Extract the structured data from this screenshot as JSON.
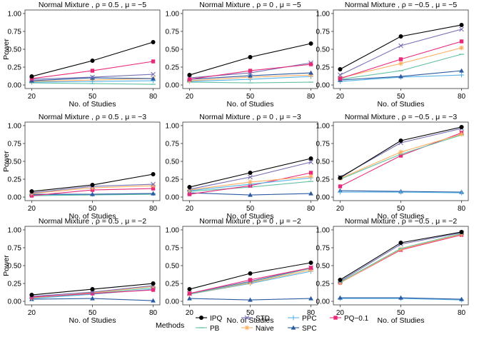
{
  "legend": {
    "title": "Methods",
    "entries": [
      {
        "key": "IPQ",
        "label": "IPQ",
        "color": "#000000",
        "marker": "circle"
      },
      {
        "key": "PB",
        "label": "PB",
        "color": "#66c2a5",
        "marker": "minus"
      },
      {
        "key": "STD",
        "label": "STD",
        "color": "#7570b3",
        "marker": "x"
      },
      {
        "key": "Naive",
        "label": "Naive",
        "color": "#fdae61",
        "marker": "asterisk"
      },
      {
        "key": "PPC",
        "label": "PPC",
        "color": "#56b4e9",
        "marker": "plus"
      },
      {
        "key": "SPC",
        "label": "SPC",
        "color": "#2c5aa0",
        "marker": "triangle"
      },
      {
        "key": "PQ",
        "label": "PQ−0.1",
        "color": "#e7297a",
        "marker": "square"
      }
    ]
  },
  "chart_data": [
    {
      "type": "line",
      "title": "Normal Mixture , ρ = 0.5 , μ = −5",
      "xlabel": "No. of Studies",
      "ylabel": "Power",
      "x": [
        20,
        50,
        80
      ],
      "ylim": [
        0,
        1
      ],
      "yticks": [
        "0.00",
        "0.25",
        "0.50",
        "0.75",
        "1.00"
      ],
      "xticks": [
        "20",
        "50",
        "80"
      ],
      "series": [
        {
          "name": "PB",
          "values": [
            0.03,
            0.02,
            0.01
          ]
        },
        {
          "name": "Naive",
          "values": [
            0.05,
            0.07,
            0.09
          ]
        },
        {
          "name": "PPC",
          "values": [
            0.04,
            0.05,
            0.06
          ]
        },
        {
          "name": "SPC",
          "values": [
            0.06,
            0.1,
            0.09
          ]
        },
        {
          "name": "STD",
          "values": [
            0.08,
            0.11,
            0.15
          ]
        },
        {
          "name": "PQ",
          "values": [
            0.09,
            0.2,
            0.33
          ]
        },
        {
          "name": "IPQ",
          "values": [
            0.12,
            0.34,
            0.6
          ]
        }
      ]
    },
    {
      "type": "line",
      "title": "Normal Mixture , ρ = 0 , μ = −5",
      "xlabel": "No. of Studies",
      "ylabel": "",
      "x": [
        20,
        50,
        80
      ],
      "ylim": [
        0,
        1
      ],
      "yticks": [
        "0.00",
        "0.25",
        "0.50",
        "0.75",
        "1.00"
      ],
      "xticks": [
        "20",
        "50",
        "80"
      ],
      "series": [
        {
          "name": "PB",
          "values": [
            0.04,
            0.03,
            0.04
          ]
        },
        {
          "name": "PPC",
          "values": [
            0.05,
            0.08,
            0.12
          ]
        },
        {
          "name": "Naive",
          "values": [
            0.06,
            0.11,
            0.14
          ]
        },
        {
          "name": "SPC",
          "values": [
            0.08,
            0.13,
            0.17
          ]
        },
        {
          "name": "STD",
          "values": [
            0.1,
            0.17,
            0.31
          ]
        },
        {
          "name": "PQ",
          "values": [
            0.08,
            0.2,
            0.29
          ]
        },
        {
          "name": "IPQ",
          "values": [
            0.14,
            0.39,
            0.58
          ]
        }
      ]
    },
    {
      "type": "line",
      "title": "Normal Mixture , ρ = −0.5 , μ = −5",
      "xlabel": "No. of Studies",
      "ylabel": "",
      "x": [
        20,
        50,
        80
      ],
      "ylim": [
        0,
        1
      ],
      "yticks": [
        "0.00",
        "0.25",
        "0.50",
        "0.75",
        "1.00"
      ],
      "xticks": [
        "20",
        "50",
        "80"
      ],
      "series": [
        {
          "name": "PPC",
          "values": [
            0.05,
            0.11,
            0.14
          ]
        },
        {
          "name": "SPC",
          "values": [
            0.07,
            0.12,
            0.2
          ]
        },
        {
          "name": "PB",
          "values": [
            0.08,
            0.2,
            0.43
          ]
        },
        {
          "name": "Naive",
          "values": [
            0.1,
            0.3,
            0.52
          ]
        },
        {
          "name": "PQ",
          "values": [
            0.09,
            0.36,
            0.61
          ]
        },
        {
          "name": "STD",
          "values": [
            0.14,
            0.55,
            0.78
          ]
        },
        {
          "name": "IPQ",
          "values": [
            0.22,
            0.68,
            0.84
          ]
        }
      ]
    },
    {
      "type": "line",
      "title": "Normal Mixture , ρ = 0.5 , μ = −3",
      "xlabel": "No. of Studies",
      "ylabel": "Power",
      "x": [
        20,
        50,
        80
      ],
      "ylim": [
        0,
        1
      ],
      "yticks": [
        "0.00",
        "0.25",
        "0.50",
        "0.75",
        "1.00"
      ],
      "xticks": [
        "20",
        "50",
        "80"
      ],
      "series": [
        {
          "name": "PB",
          "values": [
            0.02,
            0.03,
            0.04
          ]
        },
        {
          "name": "PPC",
          "values": [
            0.03,
            0.04,
            0.05
          ]
        },
        {
          "name": "SPC",
          "values": [
            0.04,
            0.04,
            0.05
          ]
        },
        {
          "name": "PQ",
          "values": [
            0.02,
            0.1,
            0.12
          ]
        },
        {
          "name": "Naive",
          "values": [
            0.05,
            0.13,
            0.16
          ]
        },
        {
          "name": "STD",
          "values": [
            0.06,
            0.15,
            0.18
          ]
        },
        {
          "name": "IPQ",
          "values": [
            0.08,
            0.17,
            0.32
          ]
        }
      ]
    },
    {
      "type": "line",
      "title": "Normal Mixture , ρ = 0 , μ = −3",
      "xlabel": "No. of Studies",
      "ylabel": "",
      "x": [
        20,
        50,
        80
      ],
      "ylim": [
        0,
        1
      ],
      "yticks": [
        "0.00",
        "0.25",
        "0.50",
        "0.75",
        "1.00"
      ],
      "xticks": [
        "20",
        "50",
        "80"
      ],
      "series": [
        {
          "name": "SPC",
          "values": [
            0.06,
            0.03,
            0.05
          ]
        },
        {
          "name": "PB",
          "values": [
            0.08,
            0.14,
            0.22
          ]
        },
        {
          "name": "PQ",
          "values": [
            0.04,
            0.16,
            0.34
          ]
        },
        {
          "name": "PPC",
          "values": [
            0.09,
            0.18,
            0.27
          ]
        },
        {
          "name": "Naive",
          "values": [
            0.1,
            0.21,
            0.29
          ]
        },
        {
          "name": "STD",
          "values": [
            0.11,
            0.28,
            0.49
          ]
        },
        {
          "name": "IPQ",
          "values": [
            0.14,
            0.34,
            0.54
          ]
        }
      ]
    },
    {
      "type": "line",
      "title": "Normal Mixture , ρ = −0.5 , μ = −3",
      "xlabel": "No. of Studies",
      "ylabel": "",
      "x": [
        20,
        50,
        80
      ],
      "ylim": [
        0,
        1
      ],
      "yticks": [
        "0.00",
        "0.25",
        "0.50",
        "0.75",
        "1.00"
      ],
      "xticks": [
        "20",
        "50",
        "80"
      ],
      "series": [
        {
          "name": "SPC",
          "values": [
            0.09,
            0.08,
            0.07
          ]
        },
        {
          "name": "PPC",
          "values": [
            0.07,
            0.07,
            0.06
          ]
        },
        {
          "name": "PQ",
          "values": [
            0.15,
            0.58,
            0.9
          ]
        },
        {
          "name": "PB",
          "values": [
            0.25,
            0.6,
            0.87
          ]
        },
        {
          "name": "Naive",
          "values": [
            0.26,
            0.63,
            0.88
          ]
        },
        {
          "name": "STD",
          "values": [
            0.28,
            0.76,
            0.96
          ]
        },
        {
          "name": "IPQ",
          "values": [
            0.27,
            0.79,
            0.98
          ]
        }
      ]
    },
    {
      "type": "line",
      "title": "Normal Mixture , ρ = 0.5 , μ = −2",
      "xlabel": "No. of Studies",
      "ylabel": "Power",
      "x": [
        20,
        50,
        80
      ],
      "ylim": [
        0,
        1
      ],
      "yticks": [
        "0.00",
        "0.25",
        "0.50",
        "0.75",
        "1.00"
      ],
      "xticks": [
        "20",
        "50",
        "80"
      ],
      "series": [
        {
          "name": "SPC",
          "values": [
            0.03,
            0.04,
            0.01
          ]
        },
        {
          "name": "PPC",
          "values": [
            0.04,
            0.1,
            0.17
          ]
        },
        {
          "name": "PB",
          "values": [
            0.05,
            0.11,
            0.19
          ]
        },
        {
          "name": "Naive",
          "values": [
            0.05,
            0.12,
            0.21
          ]
        },
        {
          "name": "PQ",
          "values": [
            0.06,
            0.11,
            0.16
          ]
        },
        {
          "name": "STD",
          "values": [
            0.07,
            0.13,
            0.22
          ]
        },
        {
          "name": "IPQ",
          "values": [
            0.09,
            0.17,
            0.25
          ]
        }
      ]
    },
    {
      "type": "line",
      "title": "Normal Mixture , ρ = 0 , μ = −2",
      "xlabel": "No. of Studies",
      "ylabel": "",
      "x": [
        20,
        50,
        80
      ],
      "ylim": [
        0,
        1
      ],
      "yticks": [
        "0.00",
        "0.25",
        "0.50",
        "0.75",
        "1.00"
      ],
      "xticks": [
        "20",
        "50",
        "80"
      ],
      "series": [
        {
          "name": "SPC",
          "values": [
            0.04,
            0.02,
            0.04
          ]
        },
        {
          "name": "PPC",
          "values": [
            0.1,
            0.25,
            0.42
          ]
        },
        {
          "name": "Naive",
          "values": [
            0.1,
            0.26,
            0.44
          ]
        },
        {
          "name": "PB",
          "values": [
            0.1,
            0.27,
            0.46
          ]
        },
        {
          "name": "STD",
          "values": [
            0.11,
            0.28,
            0.47
          ]
        },
        {
          "name": "PQ",
          "values": [
            0.11,
            0.3,
            0.47
          ]
        },
        {
          "name": "IPQ",
          "values": [
            0.17,
            0.39,
            0.54
          ]
        }
      ]
    },
    {
      "type": "line",
      "title": "Normal Mixture , ρ = −0.5 , μ = −2",
      "xlabel": "No. of Studies",
      "ylabel": "",
      "x": [
        20,
        50,
        80
      ],
      "ylim": [
        0,
        1
      ],
      "yticks": [
        "0.00",
        "0.25",
        "0.50",
        "0.75",
        "1.00"
      ],
      "xticks": [
        "20",
        "50",
        "80"
      ],
      "series": [
        {
          "name": "PPC",
          "values": [
            0.04,
            0.04,
            0.02
          ]
        },
        {
          "name": "SPC",
          "values": [
            0.05,
            0.05,
            0.03
          ]
        },
        {
          "name": "PQ",
          "values": [
            0.26,
            0.72,
            0.93
          ]
        },
        {
          "name": "Naive",
          "values": [
            0.26,
            0.73,
            0.94
          ]
        },
        {
          "name": "PB",
          "values": [
            0.27,
            0.74,
            0.95
          ]
        },
        {
          "name": "STD",
          "values": [
            0.28,
            0.8,
            0.96
          ]
        },
        {
          "name": "IPQ",
          "values": [
            0.3,
            0.82,
            0.97
          ]
        }
      ]
    }
  ]
}
